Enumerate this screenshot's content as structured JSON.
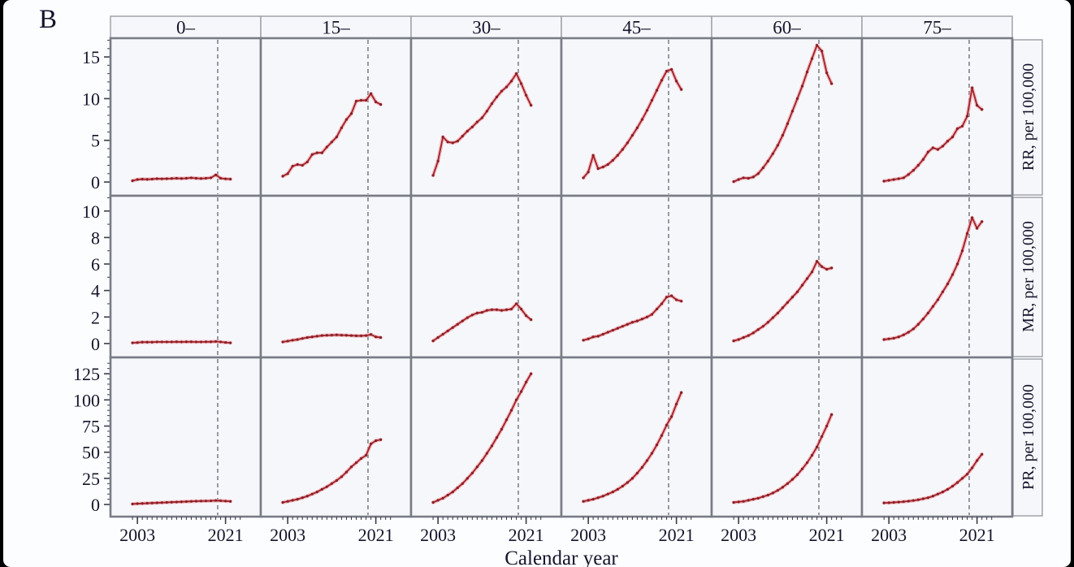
{
  "figure": {
    "label": "B"
  },
  "colors": {
    "line": "#a6242c",
    "line_glow": "rgba(233,150,155,0.55)",
    "point": "#8a1f26",
    "ref_line": "#5a5a64",
    "panel_border": "#787c85",
    "strip_border": "#9a9da5",
    "panel_bg": "#f6f7fb",
    "page_bg": "#fcfdff",
    "text": "#14142b",
    "tick": "#3c3c4c"
  },
  "chart_data": {
    "type": "line",
    "title": "",
    "xlabel": "Calendar year",
    "legend": "none",
    "grid": false,
    "x": [
      2002,
      2003,
      2004,
      2005,
      2006,
      2007,
      2008,
      2009,
      2010,
      2011,
      2012,
      2013,
      2014,
      2015,
      2016,
      2017,
      2018,
      2019,
      2020,
      2021,
      2022
    ],
    "xticks": [
      2003,
      2021
    ],
    "xminor_ticks_every": 1,
    "xminor_range": [
      2002,
      2024
    ],
    "xlim": [
      1997.5,
      2028.2
    ],
    "ref_line_x": 2019.4,
    "ref_line_style": "dashed",
    "col_facets": [
      "0–",
      "15–",
      "30–",
      "45–",
      "60–",
      "75–"
    ],
    "row_facets": [
      {
        "key": "RR",
        "label": "RR, per 100,000",
        "yticks": [
          0,
          5,
          10,
          15
        ],
        "minor_step": 1,
        "minor_max": 17,
        "ylim": [
          -1.65,
          17.25
        ]
      },
      {
        "key": "MR",
        "label": "MR, per 100,000",
        "yticks": [
          0,
          2,
          4,
          6,
          8,
          10
        ],
        "minor_step": 1,
        "minor_max": 11,
        "ylim": [
          -1.05,
          11.15
        ]
      },
      {
        "key": "PR",
        "label": "PR, per 100,000",
        "yticks": [
          0,
          25,
          50,
          75,
          100,
          125
        ],
        "minor_step": 5,
        "minor_max": 135,
        "ylim": [
          -11.6,
          140.6
        ]
      }
    ],
    "series": [
      {
        "row": "RR",
        "col": "0–",
        "values": [
          0.15,
          0.3,
          0.35,
          0.32,
          0.35,
          0.4,
          0.38,
          0.4,
          0.42,
          0.45,
          0.42,
          0.45,
          0.5,
          0.45,
          0.42,
          0.45,
          0.5,
          0.85,
          0.45,
          0.38,
          0.35
        ]
      },
      {
        "row": "RR",
        "col": "15–",
        "values": [
          0.7,
          1.0,
          1.9,
          2.1,
          2.0,
          2.4,
          3.3,
          3.5,
          3.5,
          4.2,
          4.8,
          5.4,
          6.5,
          7.5,
          8.2,
          9.7,
          9.8,
          9.8,
          10.6,
          9.6,
          9.3
        ]
      },
      {
        "row": "RR",
        "col": "30–",
        "values": [
          0.8,
          2.5,
          5.4,
          4.8,
          4.7,
          4.9,
          5.5,
          6.1,
          6.6,
          7.2,
          7.7,
          8.5,
          9.4,
          10.2,
          10.9,
          11.4,
          12.1,
          13.0,
          11.8,
          10.4,
          9.2
        ]
      },
      {
        "row": "RR",
        "col": "45–",
        "values": [
          0.5,
          1.2,
          3.2,
          1.6,
          1.8,
          2.1,
          2.6,
          3.2,
          3.9,
          4.7,
          5.6,
          6.5,
          7.5,
          8.6,
          9.8,
          11.0,
          12.2,
          13.3,
          13.5,
          12.1,
          11.1
        ]
      },
      {
        "row": "RR",
        "col": "60–",
        "values": [
          0.05,
          0.3,
          0.5,
          0.45,
          0.6,
          1.0,
          1.7,
          2.5,
          3.4,
          4.4,
          5.6,
          7.0,
          8.5,
          10.0,
          11.5,
          13.2,
          14.8,
          16.4,
          15.7,
          13.1,
          11.8
        ]
      },
      {
        "row": "RR",
        "col": "75–",
        "values": [
          0.1,
          0.2,
          0.3,
          0.4,
          0.5,
          0.9,
          1.4,
          2.0,
          2.7,
          3.6,
          4.1,
          3.9,
          4.3,
          4.9,
          5.4,
          6.4,
          6.7,
          7.9,
          11.3,
          9.2,
          8.7
        ]
      },
      {
        "row": "MR",
        "col": "0–",
        "values": [
          0.05,
          0.07,
          0.1,
          0.1,
          0.1,
          0.12,
          0.12,
          0.12,
          0.12,
          0.13,
          0.12,
          0.13,
          0.13,
          0.12,
          0.12,
          0.13,
          0.13,
          0.15,
          0.12,
          0.08,
          0.05
        ]
      },
      {
        "row": "MR",
        "col": "15–",
        "values": [
          0.12,
          0.18,
          0.25,
          0.3,
          0.38,
          0.45,
          0.5,
          0.55,
          0.6,
          0.62,
          0.63,
          0.65,
          0.63,
          0.62,
          0.6,
          0.58,
          0.58,
          0.6,
          0.68,
          0.5,
          0.45
        ]
      },
      {
        "row": "MR",
        "col": "30–",
        "values": [
          0.2,
          0.45,
          0.7,
          0.95,
          1.2,
          1.45,
          1.7,
          1.95,
          2.15,
          2.3,
          2.35,
          2.5,
          2.55,
          2.55,
          2.5,
          2.55,
          2.6,
          3.0,
          2.6,
          2.1,
          1.8
        ]
      },
      {
        "row": "MR",
        "col": "45–",
        "values": [
          0.25,
          0.35,
          0.5,
          0.55,
          0.7,
          0.85,
          1.0,
          1.15,
          1.3,
          1.45,
          1.6,
          1.7,
          1.85,
          2.0,
          2.2,
          2.6,
          3.0,
          3.5,
          3.6,
          3.3,
          3.2
        ]
      },
      {
        "row": "MR",
        "col": "60–",
        "values": [
          0.2,
          0.3,
          0.45,
          0.6,
          0.8,
          1.05,
          1.3,
          1.6,
          1.95,
          2.3,
          2.7,
          3.1,
          3.5,
          3.9,
          4.4,
          4.9,
          5.4,
          6.2,
          5.8,
          5.6,
          5.7
        ]
      },
      {
        "row": "MR",
        "col": "75–",
        "values": [
          0.3,
          0.35,
          0.4,
          0.5,
          0.65,
          0.85,
          1.1,
          1.45,
          1.85,
          2.3,
          2.8,
          3.3,
          3.9,
          4.5,
          5.2,
          6.0,
          7.0,
          8.3,
          9.5,
          8.7,
          9.2
        ]
      },
      {
        "row": "PR",
        "col": "0–",
        "values": [
          0.5,
          0.8,
          1.0,
          1.2,
          1.4,
          1.6,
          1.8,
          2.0,
          2.2,
          2.4,
          2.6,
          2.8,
          3.0,
          3.2,
          3.3,
          3.4,
          3.5,
          3.8,
          3.6,
          3.3,
          3.0
        ]
      },
      {
        "row": "PR",
        "col": "15–",
        "values": [
          2,
          3,
          4,
          5,
          6.5,
          8,
          10,
          12,
          14.5,
          17,
          20,
          23,
          26.5,
          31,
          36,
          40,
          44,
          47,
          58,
          61,
          62
        ]
      },
      {
        "row": "PR",
        "col": "30–",
        "values": [
          2,
          4,
          6,
          9,
          12,
          16,
          20,
          25,
          30,
          36,
          42,
          49,
          56,
          64,
          72,
          81,
          90,
          100,
          108,
          117,
          125
        ]
      },
      {
        "row": "PR",
        "col": "45–",
        "values": [
          3,
          4,
          5,
          6.5,
          8,
          10,
          12,
          14.5,
          17.5,
          21,
          25,
          30,
          35.5,
          42,
          49,
          57,
          66,
          76,
          84,
          96,
          107
        ]
      },
      {
        "row": "PR",
        "col": "60–",
        "values": [
          2,
          2.5,
          3,
          4,
          5,
          6,
          7.5,
          9,
          11,
          13.5,
          16.5,
          20,
          24,
          28.5,
          34,
          40,
          47,
          55,
          65,
          75,
          86
        ]
      },
      {
        "row": "PR",
        "col": "75–",
        "values": [
          1.5,
          1.7,
          2,
          2.3,
          2.7,
          3.2,
          3.8,
          4.5,
          5.5,
          6.5,
          8,
          10,
          12,
          14.5,
          17.5,
          21,
          25,
          29,
          35,
          42,
          48
        ]
      }
    ]
  }
}
